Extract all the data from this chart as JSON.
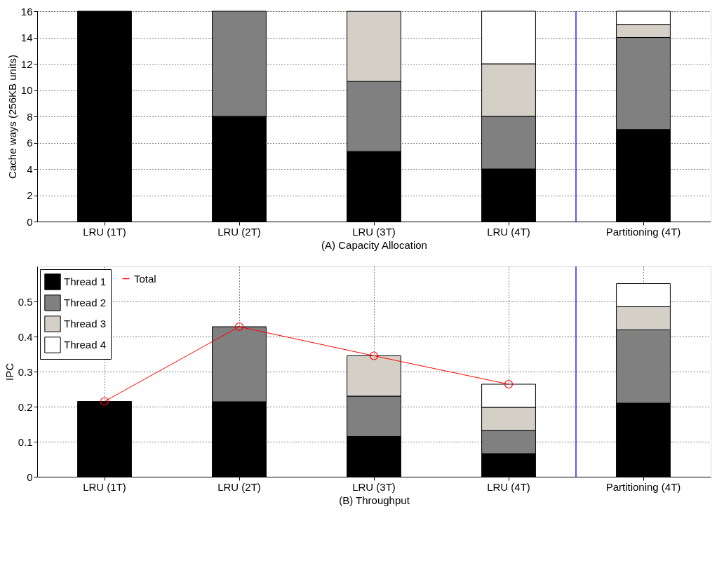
{
  "chart_data": [
    {
      "type": "bar",
      "stacked": true,
      "xlabel": "(A) Capacity Allocation",
      "ylabel": "Cache ways (256KB units)",
      "categories": [
        "LRU (1T)",
        "LRU (2T)",
        "LRU (3T)",
        "LRU (4T)",
        "Partitioning (4T)"
      ],
      "ylim": [
        0,
        16
      ],
      "yticks": [
        0,
        2,
        4,
        6,
        8,
        10,
        12,
        14,
        16
      ],
      "grid": true,
      "legend": false,
      "series": [
        {
          "color": "#000000",
          "values": [
            16,
            8,
            5.33,
            4,
            7
          ]
        },
        {
          "color": "#808080",
          "values": [
            null,
            8,
            5.33,
            4,
            7
          ]
        },
        {
          "color": "#d4d0c8",
          "values": [
            null,
            null,
            5.33,
            4,
            1
          ]
        },
        {
          "color": "#ffffff",
          "values": [
            null,
            null,
            null,
            4,
            1
          ]
        }
      ],
      "ref_lines": [
        {
          "axis": "x",
          "value": "Partitioning (4T)",
          "color": "#0000ff"
        }
      ]
    },
    {
      "type": "bar",
      "stacked": true,
      "xlabel": "(B) Throughput",
      "ylabel": "IPC",
      "categories": [
        "LRU (1T)",
        "LRU (2T)",
        "LRU (3T)",
        "LRU (4T)",
        "Partitioning (4T)"
      ],
      "ylim": [
        0,
        0.6
      ],
      "yticks": [
        0,
        0.1,
        0.2,
        0.3,
        0.4,
        0.5
      ],
      "grid": true,
      "legend": "top left",
      "series": [
        {
          "name": "Thread 1",
          "color": "#000000",
          "values": [
            0.215,
            0.214,
            0.115,
            0.066,
            0.21
          ]
        },
        {
          "name": "Thread 2",
          "color": "#808080",
          "values": [
            null,
            0.214,
            0.115,
            0.066,
            0.209
          ]
        },
        {
          "name": "Thread 3",
          "color": "#d4d0c8",
          "values": [
            null,
            null,
            0.115,
            0.066,
            0.066
          ]
        },
        {
          "name": "Thread 4",
          "color": "#ffffff",
          "values": [
            null,
            null,
            null,
            0.066,
            0.066
          ]
        },
        {
          "name": "Total",
          "type": "line",
          "color": "#ff0000",
          "marker": "circle",
          "values": [
            0.215,
            0.428,
            0.345,
            0.264,
            null
          ]
        }
      ],
      "ref_lines": [
        {
          "axis": "x",
          "value": "Partitioning (4T)",
          "color": "#0000ff"
        }
      ]
    }
  ]
}
